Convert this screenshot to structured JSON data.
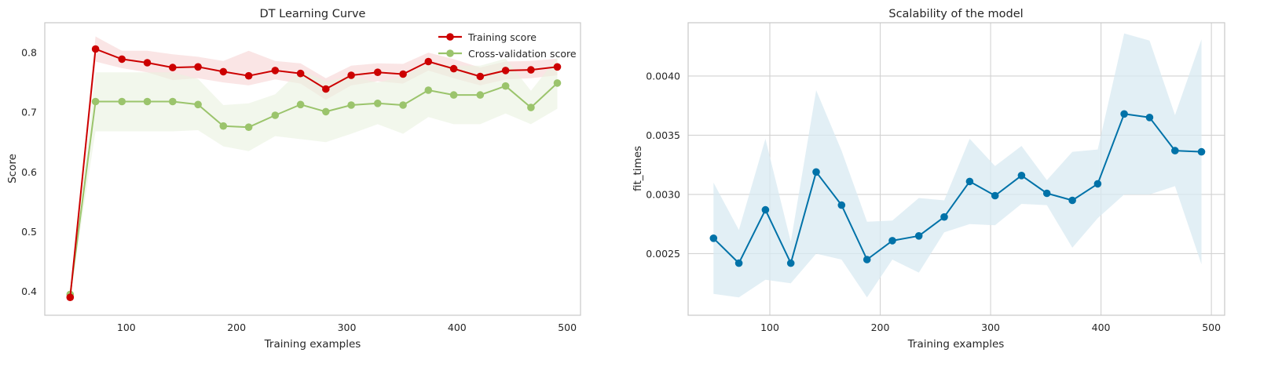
{
  "colors": {
    "train": "#cc0000",
    "cv": "#9bc46c",
    "fit": "#0072a8",
    "grid": "#d2d2d2",
    "frame": "#c8c8c8",
    "train_band": "#f7d4d4",
    "cv_band": "#e9f2df",
    "fit_band": "#d8e9f1"
  },
  "chart_data": [
    {
      "type": "line",
      "title": "DT Learning Curve",
      "xlabel": "Training examples",
      "ylabel": "Score",
      "xlim": [
        26,
        512
      ],
      "ylim": [
        0.36,
        0.85
      ],
      "xticks": [
        100,
        200,
        300,
        400,
        500
      ],
      "yticks": [
        0.4,
        0.5,
        0.6,
        0.7,
        0.8
      ],
      "ytick_labels": [
        "0.4",
        "0.5",
        "0.6",
        "0.7",
        "0.8"
      ],
      "grid": false,
      "legend": "top-right",
      "x": [
        49,
        72,
        96,
        119,
        142,
        165,
        188,
        211,
        235,
        258,
        281,
        304,
        328,
        351,
        374,
        397,
        421,
        444,
        467,
        491
      ],
      "series": [
        {
          "name": "Training score",
          "values": [
            0.39,
            0.806,
            0.789,
            0.783,
            0.775,
            0.776,
            0.768,
            0.761,
            0.77,
            0.765,
            0.739,
            0.762,
            0.767,
            0.764,
            0.785,
            0.773,
            0.76,
            0.77,
            0.771,
            0.776
          ],
          "lower": [
            0.389,
            0.785,
            0.774,
            0.767,
            0.754,
            0.757,
            0.75,
            0.745,
            0.755,
            0.748,
            0.721,
            0.745,
            0.752,
            0.748,
            0.77,
            0.757,
            0.745,
            0.755,
            0.757,
            0.762
          ],
          "upper": [
            0.392,
            0.827,
            0.803,
            0.803,
            0.797,
            0.793,
            0.786,
            0.803,
            0.786,
            0.782,
            0.757,
            0.778,
            0.782,
            0.781,
            0.8,
            0.789,
            0.775,
            0.785,
            0.786,
            0.79
          ]
        },
        {
          "name": "Cross-validation score",
          "values": [
            0.395,
            0.718,
            0.718,
            0.718,
            0.718,
            0.713,
            0.677,
            0.675,
            0.695,
            0.713,
            0.701,
            0.712,
            0.715,
            0.712,
            0.737,
            0.729,
            0.729,
            0.744,
            0.708,
            0.749
          ],
          "lower": [
            0.394,
            0.668,
            0.668,
            0.668,
            0.668,
            0.67,
            0.643,
            0.635,
            0.66,
            0.655,
            0.65,
            0.664,
            0.68,
            0.664,
            0.692,
            0.68,
            0.68,
            0.698,
            0.68,
            0.706
          ],
          "upper": [
            0.397,
            0.767,
            0.767,
            0.767,
            0.767,
            0.756,
            0.712,
            0.715,
            0.73,
            0.771,
            0.752,
            0.76,
            0.75,
            0.76,
            0.782,
            0.778,
            0.778,
            0.79,
            0.736,
            0.792
          ]
        }
      ]
    },
    {
      "type": "line",
      "title": "Scalability of the model",
      "xlabel": "Training examples",
      "ylabel": "fit_times",
      "xlim": [
        26,
        512
      ],
      "ylim": [
        0.00198,
        0.00445
      ],
      "xticks": [
        100,
        200,
        300,
        400,
        500
      ],
      "yticks": [
        0.0025,
        0.003,
        0.0035,
        0.004
      ],
      "ytick_labels": [
        "0.0025",
        "0.0030",
        "0.0035",
        "0.0040"
      ],
      "grid": true,
      "x": [
        49,
        72,
        96,
        119,
        142,
        165,
        188,
        211,
        235,
        258,
        281,
        304,
        328,
        351,
        374,
        397,
        421,
        444,
        467,
        491
      ],
      "series": [
        {
          "values": [
            0.00263,
            0.00242,
            0.00287,
            0.00242,
            0.00319,
            0.00291,
            0.00245,
            0.00261,
            0.00265,
            0.00281,
            0.00311,
            0.00299,
            0.00316,
            0.00301,
            0.00295,
            0.00309,
            0.00368,
            0.00365,
            0.00337,
            0.00336
          ],
          "lower": [
            0.00216,
            0.00213,
            0.00228,
            0.00225,
            0.0025,
            0.00245,
            0.00213,
            0.00245,
            0.00234,
            0.00268,
            0.00275,
            0.00274,
            0.00292,
            0.00291,
            0.00255,
            0.0028,
            0.003,
            0.003,
            0.00307,
            0.00241
          ],
          "upper": [
            0.0031,
            0.0027,
            0.00347,
            0.0026,
            0.00388,
            0.00337,
            0.00277,
            0.00278,
            0.00297,
            0.00295,
            0.00347,
            0.00324,
            0.00341,
            0.00312,
            0.00336,
            0.00338,
            0.00436,
            0.0043,
            0.00367,
            0.00431
          ]
        }
      ]
    }
  ]
}
